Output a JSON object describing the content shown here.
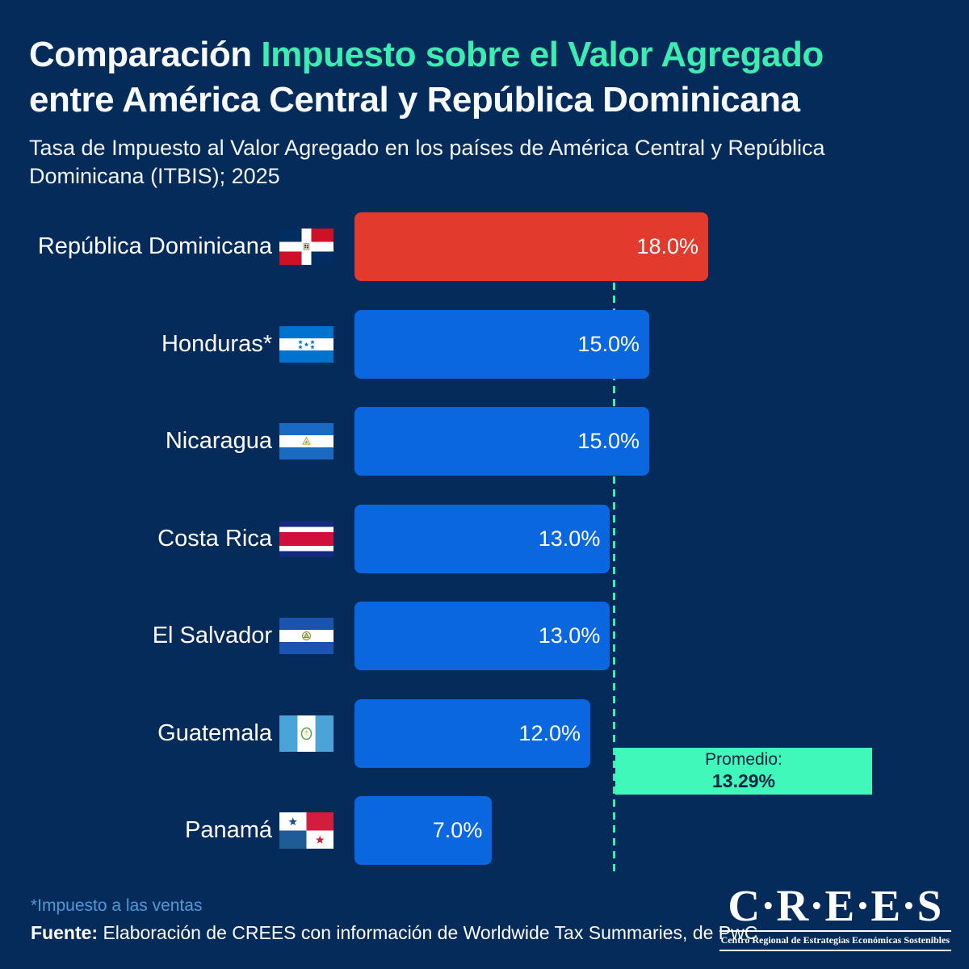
{
  "colors": {
    "background": "#052b5a",
    "accent_teal": "#3cecb0",
    "bar_blue": "#0b67e0",
    "bar_red": "#e23b2e",
    "average_box_bg": "#40f8ba",
    "average_box_text": "#03233f",
    "footnote_blue": "#4f9ad6"
  },
  "header": {
    "title_line1_white": "Comparación ",
    "title_line1_accent": "Impuesto sobre el Valor Agregado",
    "title_line2": "entre América Central y República Dominicana",
    "subtitle_line1": "Tasa de Impuesto al Valor Agregado en los países de América Central y República",
    "subtitle_line2": "Dominicana (ITBIS); 2025"
  },
  "chart_data": {
    "type": "bar",
    "orientation": "horizontal",
    "unit": "percent",
    "xlim": [
      0,
      18
    ],
    "categories": [
      "República Dominicana",
      "Honduras*",
      "Nicaragua",
      "Costa Rica",
      "El Salvador",
      "Guatemala",
      "Panamá"
    ],
    "values": [
      18.0,
      15.0,
      15.0,
      13.0,
      13.0,
      12.0,
      7.0
    ],
    "rows": [
      {
        "label": "República Dominicana",
        "flag": "dominican-republic-flag-icon",
        "value": 18.0,
        "value_label": "18.0%",
        "color": "#e23b2e"
      },
      {
        "label": "Honduras*",
        "flag": "honduras-flag-icon",
        "value": 15.0,
        "value_label": "15.0%",
        "color": "#0b67e0"
      },
      {
        "label": "Nicaragua",
        "flag": "nicaragua-flag-icon",
        "value": 15.0,
        "value_label": "15.0%",
        "color": "#0b67e0"
      },
      {
        "label": "Costa Rica",
        "flag": "costa-rica-flag-icon",
        "value": 13.0,
        "value_label": "13.0%",
        "color": "#0b67e0"
      },
      {
        "label": "El Salvador",
        "flag": "el-salvador-flag-icon",
        "value": 13.0,
        "value_label": "13.0%",
        "color": "#0b67e0"
      },
      {
        "label": "Guatemala",
        "flag": "guatemala-flag-icon",
        "value": 12.0,
        "value_label": "12.0%",
        "color": "#0b67e0"
      },
      {
        "label": "Panamá",
        "flag": "panama-flag-icon",
        "value": 7.0,
        "value_label": "7.0%",
        "color": "#0b67e0"
      }
    ],
    "average": 13.29,
    "average_label": "Promedio:",
    "average_value_label": "13.29%",
    "legend_position": "none",
    "grid": false
  },
  "footer": {
    "footnote": "*Impuesto a las ventas",
    "source_label": "Fuente:",
    "source_text": " Elaboración de CREES con información de Worldwide Tax Summaries, de PwC"
  },
  "logo": {
    "acronym": "C·R·E·E·S",
    "tagline": "Centro Regional de Estrategias Económicas Sostenibles"
  }
}
